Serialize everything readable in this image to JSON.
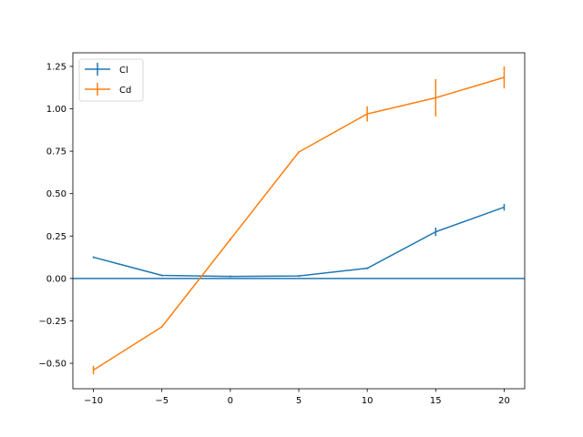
{
  "chart_data": {
    "type": "line",
    "title": "",
    "xlabel": "",
    "ylabel": "",
    "xlim": [
      -11.5,
      21.5
    ],
    "ylim": [
      -0.65,
      1.33
    ],
    "grid": false,
    "legend_placement": "top-left",
    "x": [
      -10,
      -5,
      0,
      5,
      10,
      15,
      20
    ],
    "x_ticks": [
      {
        "value": -10,
        "label": "−10"
      },
      {
        "value": -5,
        "label": "−5"
      },
      {
        "value": 0,
        "label": "0"
      },
      {
        "value": 5,
        "label": "5"
      },
      {
        "value": 10,
        "label": "10"
      },
      {
        "value": 15,
        "label": "15"
      },
      {
        "value": 20,
        "label": "20"
      }
    ],
    "y_ticks": [
      {
        "value": -0.5,
        "label": "−0.50"
      },
      {
        "value": -0.25,
        "label": "−0.25"
      },
      {
        "value": 0.0,
        "label": "0.00"
      },
      {
        "value": 0.25,
        "label": "0.25"
      },
      {
        "value": 0.5,
        "label": "0.50"
      },
      {
        "value": 0.75,
        "label": "0.75"
      },
      {
        "value": 1.0,
        "label": "1.00"
      },
      {
        "value": 1.25,
        "label": "1.25"
      }
    ],
    "series": [
      {
        "name": "Cl",
        "color": "#1f77b4",
        "values": [
          0.125,
          0.018,
          0.012,
          0.015,
          0.06,
          0.275,
          0.42
        ],
        "errors": [
          0.0,
          0.0,
          0.0,
          0.0,
          0.0,
          0.025,
          0.02
        ]
      },
      {
        "name": "Cd",
        "color": "#ff7f0e",
        "values": [
          -0.54,
          -0.285,
          0.23,
          0.745,
          0.97,
          1.065,
          1.185
        ],
        "errors": [
          0.025,
          0.0,
          0.0,
          0.0,
          0.045,
          0.11,
          0.065
        ]
      }
    ],
    "reference_lines": [
      {
        "orientation": "horizontal",
        "y": 0.0,
        "color": "#1f77b4"
      }
    ]
  }
}
